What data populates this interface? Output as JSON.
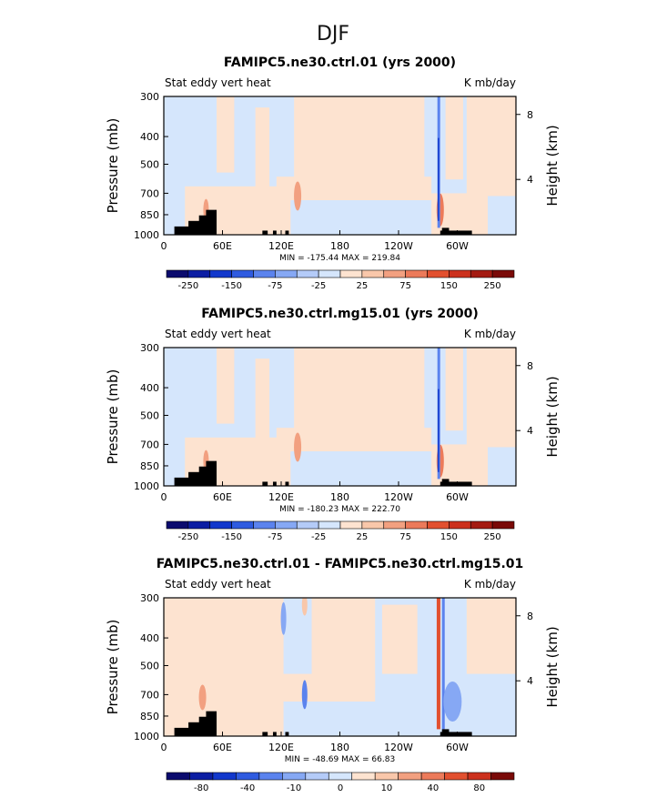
{
  "page_title": "DJF",
  "chart_data": [
    {
      "type": "heatmap",
      "title": "FAMIPC5.ne30.ctrl.01 (yrs 2000)",
      "left_label": "Stat eddy vert heat",
      "right_label": "K mb/day",
      "ylabel": "Pressure (mb)",
      "ylabel_right": "Height (km)",
      "x_ticks": [
        "0",
        "60E",
        "120E",
        "180",
        "120W",
        "60W"
      ],
      "y_ticks": [
        "300",
        "400",
        "500",
        "700",
        "850",
        "1000"
      ],
      "height_ticks": [
        "8",
        "4"
      ],
      "xlim": [
        0,
        360
      ],
      "stats_text": "MIN = -175.44   MAX = 219.84",
      "min": -175.44,
      "max": 219.84,
      "colorbar_labels": [
        "-250",
        "-150",
        "-75",
        "-25",
        "25",
        "75",
        "150",
        "250"
      ]
    },
    {
      "type": "heatmap",
      "title": "FAMIPC5.ne30.ctrl.mg15.01 (yrs 2000)",
      "left_label": "Stat eddy vert heat",
      "right_label": "K mb/day",
      "ylabel": "Pressure (mb)",
      "ylabel_right": "Height (km)",
      "x_ticks": [
        "0",
        "60E",
        "120E",
        "180",
        "120W",
        "60W"
      ],
      "y_ticks": [
        "300",
        "400",
        "500",
        "700",
        "850",
        "1000"
      ],
      "height_ticks": [
        "8",
        "4"
      ],
      "xlim": [
        0,
        360
      ],
      "stats_text": "MIN = -180.23   MAX = 222.70",
      "min": -180.23,
      "max": 222.7,
      "colorbar_labels": [
        "-250",
        "-150",
        "-75",
        "-25",
        "25",
        "75",
        "150",
        "250"
      ]
    },
    {
      "type": "heatmap",
      "title": "FAMIPC5.ne30.ctrl.01 - FAMIPC5.ne30.ctrl.mg15.01",
      "left_label": "Stat eddy vert heat",
      "right_label": "K mb/day",
      "ylabel": "Pressure (mb)",
      "ylabel_right": "Height (km)",
      "x_ticks": [
        "0",
        "60E",
        "120E",
        "180",
        "120W",
        "60W"
      ],
      "y_ticks": [
        "300",
        "400",
        "500",
        "700",
        "850",
        "1000"
      ],
      "height_ticks": [
        "8",
        "4"
      ],
      "xlim": [
        0,
        360
      ],
      "stats_text": "MIN = -48.69   MAX = 66.83",
      "min": -48.69,
      "max": 66.83,
      "colorbar_labels": [
        "-80",
        "-40",
        "-10",
        "0",
        "10",
        "40",
        "80"
      ]
    }
  ],
  "colors": {
    "bar16": [
      "#0b0b6e",
      "#0c1ea3",
      "#1238cc",
      "#2f5be0",
      "#5b83ee",
      "#86a8f4",
      "#b4cbf8",
      "#d5e6fc",
      "#fde3d0",
      "#f9c7aa",
      "#f2a080",
      "#ec7a5a",
      "#e2502f",
      "#cc311d",
      "#a41b12",
      "#7a0a08"
    ],
    "bar15": [
      "#0b0b6e",
      "#0c1ea3",
      "#1238cc",
      "#2f5be0",
      "#5b83ee",
      "#86a8f4",
      "#b4cbf8",
      "#d5e6fc",
      "#fde3d0",
      "#f9c7aa",
      "#f2a080",
      "#ec7a5a",
      "#e2502f",
      "#cc311d",
      "#7a0a08"
    ],
    "light_blue": "#d5e6fc",
    "light_peach": "#fde3d0",
    "topo": "#000000"
  }
}
